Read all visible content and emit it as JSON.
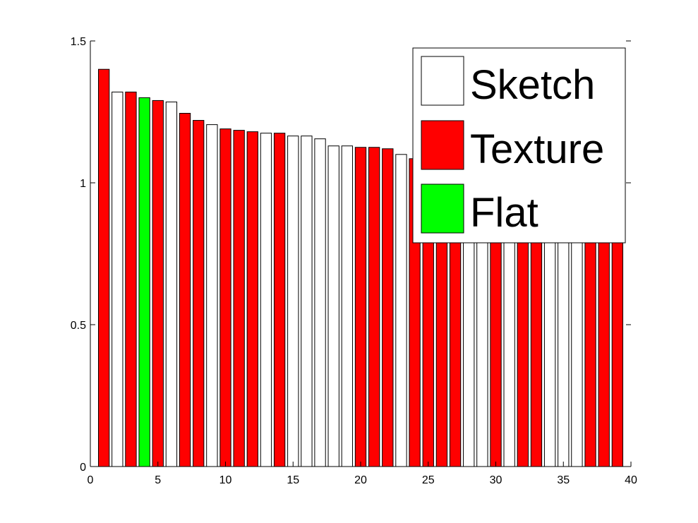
{
  "chart_data": {
    "type": "bar",
    "title": "",
    "xlabel": "",
    "ylabel": "",
    "xlim": [
      0,
      40
    ],
    "ylim": [
      0,
      1.5
    ],
    "xticks": [
      0,
      5,
      10,
      15,
      20,
      25,
      30,
      35,
      40
    ],
    "yticks": [
      0,
      0.5,
      1,
      1.5
    ],
    "xtick_labels": [
      "0",
      "5",
      "10",
      "15",
      "20",
      "25",
      "30",
      "35",
      "40"
    ],
    "ytick_labels": [
      "0",
      "0.5",
      "1",
      "1.5"
    ],
    "grid": false,
    "legend_position": "top-right",
    "x": [
      1,
      2,
      3,
      4,
      5,
      6,
      7,
      8,
      9,
      10,
      11,
      12,
      13,
      14,
      15,
      16,
      17,
      18,
      19,
      20,
      21,
      22,
      23,
      24,
      25,
      26,
      27,
      28,
      29,
      30,
      31,
      32,
      33,
      34,
      35,
      36,
      37,
      38,
      39
    ],
    "values": [
      1.4,
      1.32,
      1.32,
      1.3,
      1.29,
      1.285,
      1.245,
      1.22,
      1.205,
      1.19,
      1.185,
      1.18,
      1.175,
      1.175,
      1.165,
      1.165,
      1.155,
      1.13,
      1.13,
      1.125,
      1.125,
      1.12,
      1.1,
      1.085,
      1.05,
      1.04,
      1.03,
      1.02,
      1.01,
      1.0,
      0.99,
      0.98,
      0.97,
      0.96,
      0.95,
      0.94,
      0.93,
      0.92,
      0.91
    ],
    "classes": [
      "Texture",
      "Sketch",
      "Texture",
      "Flat",
      "Texture",
      "Sketch",
      "Texture",
      "Texture",
      "Sketch",
      "Texture",
      "Texture",
      "Texture",
      "Sketch",
      "Texture",
      "Sketch",
      "Sketch",
      "Sketch",
      "Sketch",
      "Sketch",
      "Texture",
      "Texture",
      "Texture",
      "Sketch",
      "Texture",
      "Texture",
      "Texture",
      "Texture",
      "Sketch",
      "Sketch",
      "Texture",
      "Sketch",
      "Texture",
      "Texture",
      "Sketch",
      "Sketch",
      "Sketch",
      "Texture",
      "Texture",
      "Texture"
    ],
    "legend": [
      {
        "name": "Sketch",
        "color": "#ffffff"
      },
      {
        "name": "Texture",
        "color": "#ff0000"
      },
      {
        "name": "Flat",
        "color": "#00ff00"
      }
    ]
  }
}
